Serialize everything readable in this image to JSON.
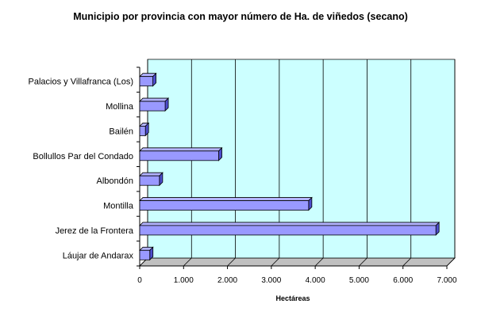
{
  "chart_data": {
    "type": "bar",
    "orientation": "horizontal",
    "title": "Municipio por provincia con mayor número de Ha. de viñedos (secano)",
    "xlabel": "Hectáreas",
    "ylabel": "",
    "categories": [
      "Palacios y Villafranca (Los)",
      "Mollina",
      "Bailén",
      "Bollullos Par del Condado",
      "Albondón",
      "Montilla",
      "Jerez de la Frontera",
      "Láujar de Andarax"
    ],
    "values": [
      300,
      580,
      130,
      1800,
      450,
      3850,
      6750,
      230
    ],
    "xlim": [
      0,
      7000
    ],
    "ticks": [
      {
        "value": 0,
        "label": "0"
      },
      {
        "value": 1000,
        "label": "1.000"
      },
      {
        "value": 2000,
        "label": "2.000"
      },
      {
        "value": 3000,
        "label": "3.000"
      },
      {
        "value": 4000,
        "label": "4.000"
      },
      {
        "value": 5000,
        "label": "5.000"
      },
      {
        "value": 6000,
        "label": "6.000"
      },
      {
        "value": 7000,
        "label": "7.000"
      }
    ],
    "grid": true,
    "legend": "none",
    "colors": {
      "bar_front": "#9999ff",
      "bar_top": "#b3b3ff",
      "bar_side": "#4d4dcc",
      "wall": "#ccffff",
      "floor": "#c0c0c0",
      "axis": "#000000"
    }
  }
}
